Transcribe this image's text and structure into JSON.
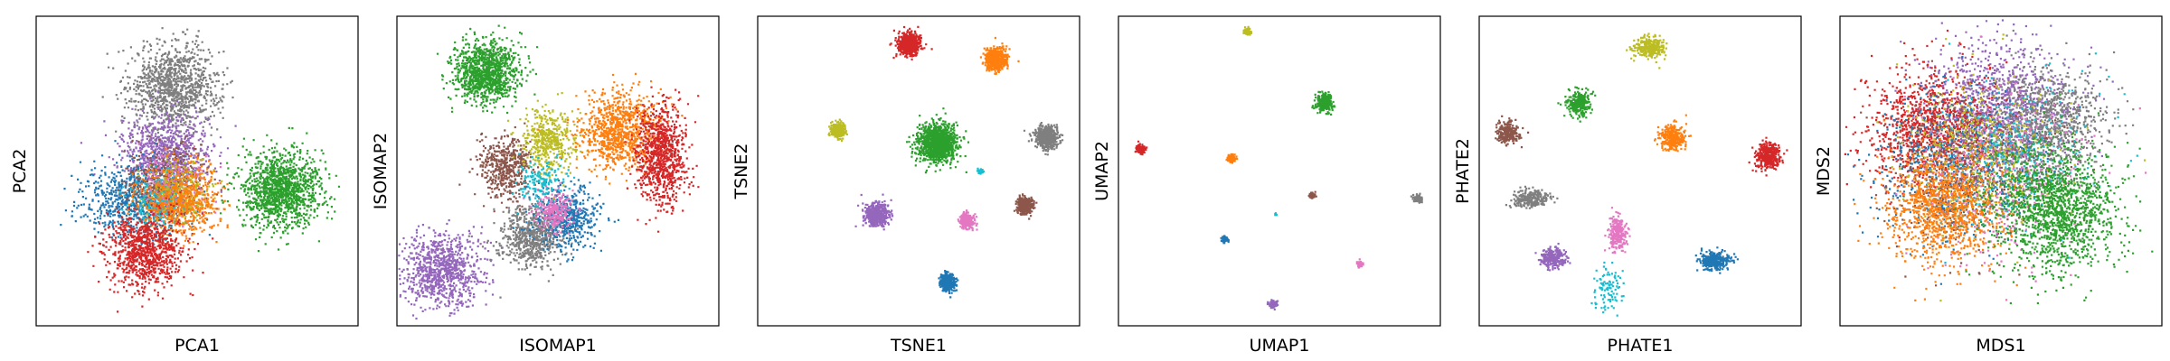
{
  "palette": [
    "#1f77b4",
    "#ff7f0e",
    "#2ca02c",
    "#d62728",
    "#9467bd",
    "#8c564b",
    "#e377c2",
    "#7f7f7f",
    "#bcbd22",
    "#17becf"
  ],
  "chart_data": [
    {
      "type": "scatter",
      "xlabel": "PCA1",
      "ylabel": "PCA2",
      "ticks": "none",
      "grid": false,
      "legend": "none",
      "clusters": [
        {
          "color": "#7f7f7f",
          "cx": 0.43,
          "cy": 0.77,
          "sx": 0.07,
          "sy": 0.07,
          "n": 1100
        },
        {
          "color": "#9467bd",
          "cx": 0.4,
          "cy": 0.56,
          "sx": 0.07,
          "sy": 0.06,
          "n": 800
        },
        {
          "color": "#1f77b4",
          "cx": 0.3,
          "cy": 0.41,
          "sx": 0.08,
          "sy": 0.06,
          "n": 700
        },
        {
          "color": "#8c564b",
          "cx": 0.4,
          "cy": 0.45,
          "sx": 0.06,
          "sy": 0.06,
          "n": 500
        },
        {
          "color": "#e377c2",
          "cx": 0.42,
          "cy": 0.44,
          "sx": 0.05,
          "sy": 0.05,
          "n": 300
        },
        {
          "color": "#bcbd22",
          "cx": 0.45,
          "cy": 0.42,
          "sx": 0.05,
          "sy": 0.05,
          "n": 300
        },
        {
          "color": "#17becf",
          "cx": 0.38,
          "cy": 0.38,
          "sx": 0.05,
          "sy": 0.05,
          "n": 200
        },
        {
          "color": "#ff7f0e",
          "cx": 0.45,
          "cy": 0.4,
          "sx": 0.06,
          "sy": 0.06,
          "n": 600
        },
        {
          "color": "#d62728",
          "cx": 0.34,
          "cy": 0.24,
          "sx": 0.06,
          "sy": 0.06,
          "n": 900
        },
        {
          "color": "#2ca02c",
          "cx": 0.76,
          "cy": 0.44,
          "sx": 0.06,
          "sy": 0.06,
          "n": 1300
        }
      ]
    },
    {
      "type": "scatter",
      "xlabel": "ISOMAP1",
      "ylabel": "ISOMAP2",
      "ticks": "none",
      "grid": false,
      "legend": "none",
      "clusters": [
        {
          "color": "#2ca02c",
          "cx": 0.28,
          "cy": 0.82,
          "sx": 0.05,
          "sy": 0.05,
          "n": 1100
        },
        {
          "color": "#9467bd",
          "cx": 0.14,
          "cy": 0.18,
          "sx": 0.06,
          "sy": 0.06,
          "n": 900
        },
        {
          "color": "#7f7f7f",
          "cx": 0.42,
          "cy": 0.29,
          "sx": 0.05,
          "sy": 0.05,
          "n": 700
        },
        {
          "color": "#1f77b4",
          "cx": 0.53,
          "cy": 0.35,
          "sx": 0.05,
          "sy": 0.05,
          "n": 500
        },
        {
          "color": "#e377c2",
          "cx": 0.49,
          "cy": 0.37,
          "sx": 0.03,
          "sy": 0.03,
          "n": 250
        },
        {
          "color": "#8c564b",
          "cx": 0.34,
          "cy": 0.51,
          "sx": 0.04,
          "sy": 0.05,
          "n": 500
        },
        {
          "color": "#bcbd22",
          "cx": 0.47,
          "cy": 0.6,
          "sx": 0.04,
          "sy": 0.05,
          "n": 450
        },
        {
          "color": "#17becf",
          "cx": 0.45,
          "cy": 0.47,
          "sx": 0.04,
          "sy": 0.04,
          "n": 150
        },
        {
          "color": "#ff7f0e",
          "cx": 0.69,
          "cy": 0.63,
          "sx": 0.06,
          "sy": 0.06,
          "n": 900
        },
        {
          "color": "#d62728",
          "cx": 0.82,
          "cy": 0.55,
          "sx": 0.04,
          "sy": 0.08,
          "n": 900
        }
      ]
    },
    {
      "type": "scatter",
      "xlabel": "TSNE1",
      "ylabel": "TSNE2",
      "ticks": "none",
      "grid": false,
      "legend": "none",
      "clusters": [
        {
          "color": "#d62728",
          "cx": 0.47,
          "cy": 0.91,
          "sx": 0.018,
          "sy": 0.018,
          "n": 500
        },
        {
          "color": "#ff7f0e",
          "cx": 0.74,
          "cy": 0.86,
          "sx": 0.018,
          "sy": 0.018,
          "n": 500
        },
        {
          "color": "#bcbd22",
          "cx": 0.25,
          "cy": 0.63,
          "sx": 0.012,
          "sy": 0.012,
          "n": 250
        },
        {
          "color": "#2ca02c",
          "cx": 0.56,
          "cy": 0.59,
          "sx": 0.03,
          "sy": 0.03,
          "n": 1200
        },
        {
          "color": "#7f7f7f",
          "cx": 0.9,
          "cy": 0.61,
          "sx": 0.018,
          "sy": 0.018,
          "n": 500
        },
        {
          "color": "#17becf",
          "cx": 0.69,
          "cy": 0.5,
          "sx": 0.005,
          "sy": 0.005,
          "n": 20
        },
        {
          "color": "#9467bd",
          "cx": 0.37,
          "cy": 0.36,
          "sx": 0.018,
          "sy": 0.018,
          "n": 500
        },
        {
          "color": "#e377c2",
          "cx": 0.65,
          "cy": 0.34,
          "sx": 0.012,
          "sy": 0.012,
          "n": 250
        },
        {
          "color": "#8c564b",
          "cx": 0.83,
          "cy": 0.39,
          "sx": 0.014,
          "sy": 0.014,
          "n": 300
        },
        {
          "color": "#1f77b4",
          "cx": 0.59,
          "cy": 0.14,
          "sx": 0.012,
          "sy": 0.015,
          "n": 300
        }
      ]
    },
    {
      "type": "scatter",
      "xlabel": "UMAP1",
      "ylabel": "UMAP2",
      "ticks": "none",
      "grid": false,
      "legend": "none",
      "clusters": [
        {
          "color": "#bcbd22",
          "cx": 0.4,
          "cy": 0.95,
          "sx": 0.006,
          "sy": 0.006,
          "n": 80
        },
        {
          "color": "#2ca02c",
          "cx": 0.64,
          "cy": 0.72,
          "sx": 0.012,
          "sy": 0.012,
          "n": 300
        },
        {
          "color": "#d62728",
          "cx": 0.07,
          "cy": 0.57,
          "sx": 0.007,
          "sy": 0.007,
          "n": 150
        },
        {
          "color": "#ff7f0e",
          "cx": 0.35,
          "cy": 0.54,
          "sx": 0.006,
          "sy": 0.006,
          "n": 100
        },
        {
          "color": "#8c564b",
          "cx": 0.6,
          "cy": 0.42,
          "sx": 0.005,
          "sy": 0.005,
          "n": 60
        },
        {
          "color": "#7f7f7f",
          "cx": 0.93,
          "cy": 0.41,
          "sx": 0.007,
          "sy": 0.006,
          "n": 100
        },
        {
          "color": "#17becf",
          "cx": 0.49,
          "cy": 0.36,
          "sx": 0.002,
          "sy": 0.002,
          "n": 6
        },
        {
          "color": "#1f77b4",
          "cx": 0.33,
          "cy": 0.28,
          "sx": 0.005,
          "sy": 0.005,
          "n": 60
        },
        {
          "color": "#e377c2",
          "cx": 0.75,
          "cy": 0.2,
          "sx": 0.005,
          "sy": 0.005,
          "n": 60
        },
        {
          "color": "#9467bd",
          "cx": 0.48,
          "cy": 0.07,
          "sx": 0.007,
          "sy": 0.007,
          "n": 100
        }
      ]
    },
    {
      "type": "scatter",
      "xlabel": "PHATE1",
      "ylabel": "PHATE2",
      "ticks": "none",
      "grid": false,
      "legend": "none",
      "clusters": [
        {
          "color": "#bcbd22",
          "cx": 0.53,
          "cy": 0.9,
          "sx": 0.025,
          "sy": 0.018,
          "n": 300
        },
        {
          "color": "#2ca02c",
          "cx": 0.31,
          "cy": 0.72,
          "sx": 0.018,
          "sy": 0.02,
          "n": 250
        },
        {
          "color": "#8c564b",
          "cx": 0.09,
          "cy": 0.62,
          "sx": 0.018,
          "sy": 0.018,
          "n": 250
        },
        {
          "color": "#ff7f0e",
          "cx": 0.6,
          "cy": 0.61,
          "sx": 0.02,
          "sy": 0.02,
          "n": 300
        },
        {
          "color": "#d62728",
          "cx": 0.9,
          "cy": 0.55,
          "sx": 0.02,
          "sy": 0.022,
          "n": 350
        },
        {
          "color": "#7f7f7f",
          "cx": 0.16,
          "cy": 0.41,
          "sx": 0.03,
          "sy": 0.015,
          "n": 250
        },
        {
          "color": "#e377c2",
          "cx": 0.43,
          "cy": 0.3,
          "sx": 0.015,
          "sy": 0.025,
          "n": 250
        },
        {
          "color": "#9467bd",
          "cx": 0.23,
          "cy": 0.22,
          "sx": 0.02,
          "sy": 0.015,
          "n": 250
        },
        {
          "color": "#1f77b4",
          "cx": 0.73,
          "cy": 0.21,
          "sx": 0.025,
          "sy": 0.015,
          "n": 300
        },
        {
          "color": "#17becf",
          "cx": 0.4,
          "cy": 0.12,
          "sx": 0.025,
          "sy": 0.035,
          "n": 100
        }
      ]
    },
    {
      "type": "scatter",
      "xlabel": "MDS1",
      "ylabel": "MDS2",
      "ticks": "none",
      "grid": false,
      "legend": "none",
      "clusters": [
        {
          "color": "#9467bd",
          "cx": 0.5,
          "cy": 0.7,
          "sx": 0.11,
          "sy": 0.11,
          "n": 1200
        },
        {
          "color": "#7f7f7f",
          "cx": 0.65,
          "cy": 0.66,
          "sx": 0.09,
          "sy": 0.09,
          "n": 900
        },
        {
          "color": "#d62728",
          "cx": 0.28,
          "cy": 0.63,
          "sx": 0.1,
          "sy": 0.1,
          "n": 1100
        },
        {
          "color": "#1f77b4",
          "cx": 0.36,
          "cy": 0.52,
          "sx": 0.12,
          "sy": 0.12,
          "n": 700
        },
        {
          "color": "#8c564b",
          "cx": 0.4,
          "cy": 0.5,
          "sx": 0.12,
          "sy": 0.12,
          "n": 500
        },
        {
          "color": "#bcbd22",
          "cx": 0.45,
          "cy": 0.55,
          "sx": 0.12,
          "sy": 0.12,
          "n": 500
        },
        {
          "color": "#e377c2",
          "cx": 0.5,
          "cy": 0.48,
          "sx": 0.13,
          "sy": 0.13,
          "n": 400
        },
        {
          "color": "#17becf",
          "cx": 0.55,
          "cy": 0.55,
          "sx": 0.13,
          "sy": 0.13,
          "n": 300
        },
        {
          "color": "#ff7f0e",
          "cx": 0.32,
          "cy": 0.38,
          "sx": 0.09,
          "sy": 0.09,
          "n": 1100
        },
        {
          "color": "#2ca02c",
          "cx": 0.67,
          "cy": 0.38,
          "sx": 0.1,
          "sy": 0.1,
          "n": 1500
        }
      ]
    }
  ]
}
